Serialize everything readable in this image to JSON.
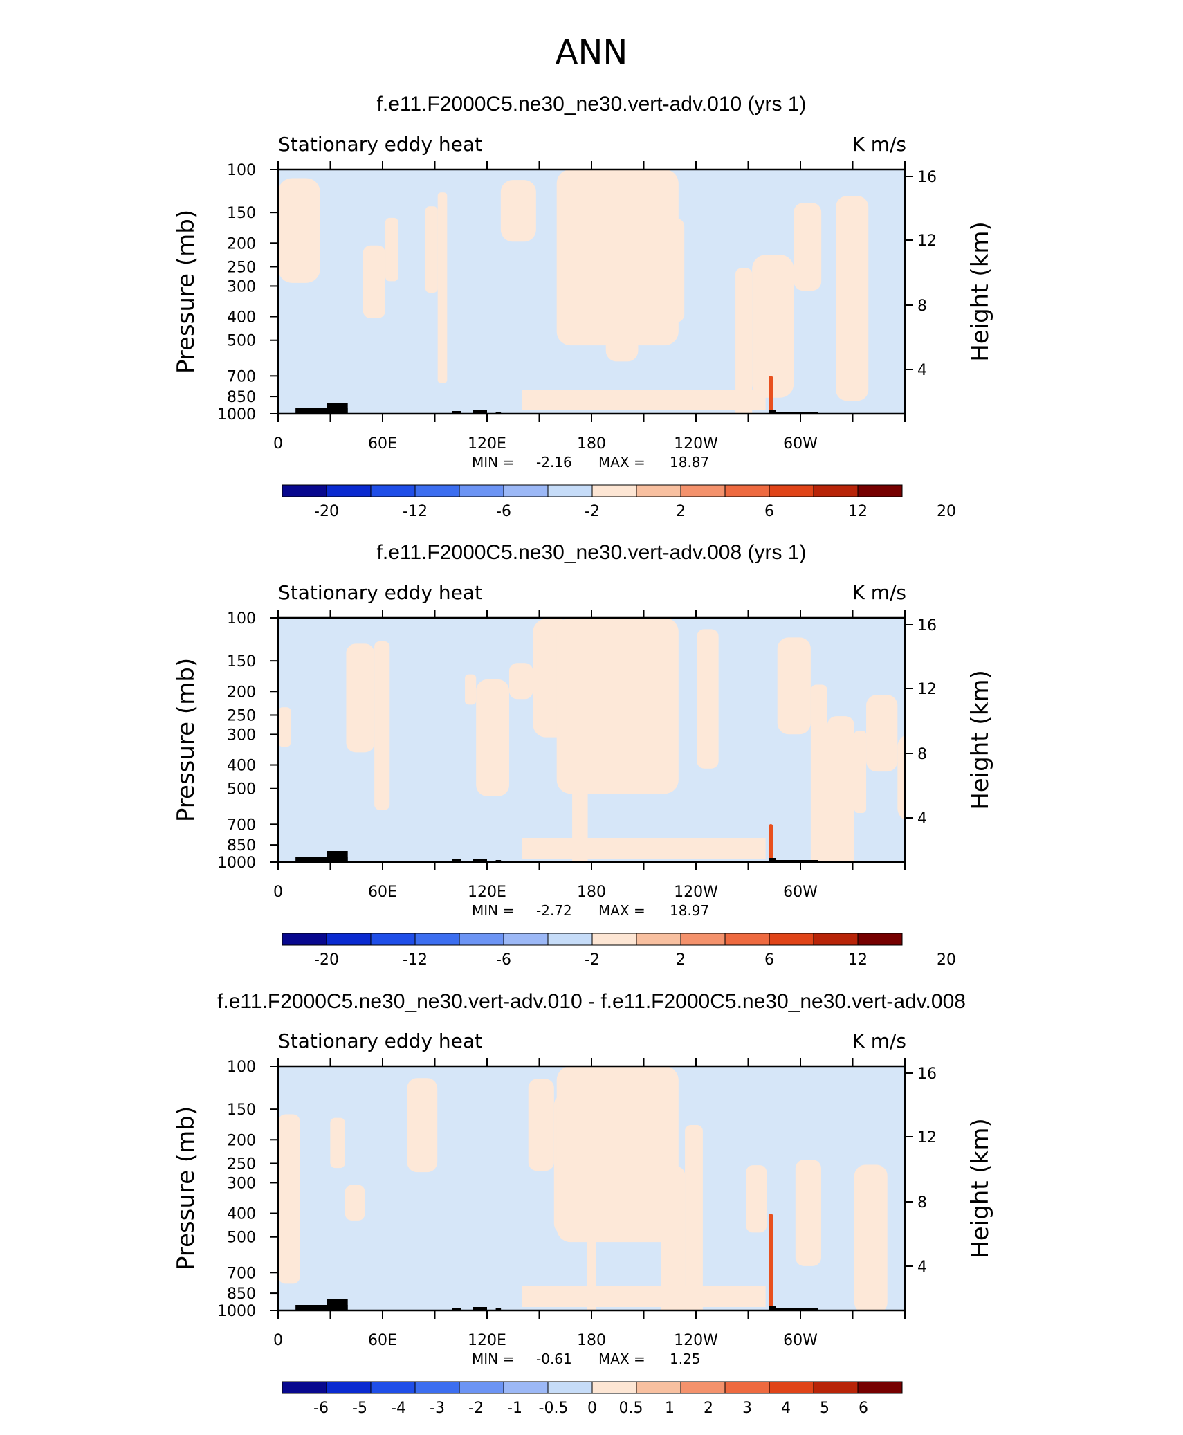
{
  "figure": {
    "title": "ANN"
  },
  "chart_data": [
    {
      "type": "heatmap",
      "title": "f.e11.F2000C5.ne30_ne30.vert-adv.010 (yrs 1)",
      "subtitle_left": "Stationary eddy heat",
      "units": "K m/s",
      "ylabel": "Pressure (mb)",
      "ylabel_right": "Height (km)",
      "x_ticks": [
        "0",
        "60E",
        "120E",
        "180",
        "120W",
        "60W"
      ],
      "y_ticks": [
        "100",
        "150",
        "200",
        "250",
        "300",
        "400",
        "500",
        "700",
        "850",
        "1000"
      ],
      "y_ticks_right": [
        "16",
        "12",
        "8",
        "4"
      ],
      "ylim": [
        1000,
        100
      ],
      "stats": {
        "min_label": "MIN =",
        "min": "-2.16",
        "max_label": "MAX =",
        "max": "18.87"
      },
      "colorbar_labels": [
        "-20",
        "-12",
        "-6",
        "-2",
        "2",
        "6",
        "12",
        "20"
      ]
    },
    {
      "type": "heatmap",
      "title": "f.e11.F2000C5.ne30_ne30.vert-adv.008 (yrs 1)",
      "subtitle_left": "Stationary eddy heat",
      "units": "K m/s",
      "ylabel": "Pressure (mb)",
      "ylabel_right": "Height (km)",
      "x_ticks": [
        "0",
        "60E",
        "120E",
        "180",
        "120W",
        "60W"
      ],
      "y_ticks": [
        "100",
        "150",
        "200",
        "250",
        "300",
        "400",
        "500",
        "700",
        "850",
        "1000"
      ],
      "y_ticks_right": [
        "16",
        "12",
        "8",
        "4"
      ],
      "ylim": [
        1000,
        100
      ],
      "stats": {
        "min_label": "MIN =",
        "min": "-2.72",
        "max_label": "MAX =",
        "max": "18.97"
      },
      "colorbar_labels": [
        "-20",
        "-12",
        "-6",
        "-2",
        "2",
        "6",
        "12",
        "20"
      ]
    },
    {
      "type": "heatmap",
      "title": "f.e11.F2000C5.ne30_ne30.vert-adv.010 - f.e11.F2000C5.ne30_ne30.vert-adv.008",
      "subtitle_left": "Stationary eddy heat",
      "units": "K m/s",
      "ylabel": "Pressure (mb)",
      "ylabel_right": "Height (km)",
      "x_ticks": [
        "0",
        "60E",
        "120E",
        "180",
        "120W",
        "60W"
      ],
      "y_ticks": [
        "100",
        "150",
        "200",
        "250",
        "300",
        "400",
        "500",
        "700",
        "850",
        "1000"
      ],
      "y_ticks_right": [
        "16",
        "12",
        "8",
        "4"
      ],
      "ylim": [
        1000,
        100
      ],
      "stats": {
        "min_label": "MIN =",
        "min": "-0.61",
        "max_label": "MAX =",
        "max": "1.25"
      },
      "colorbar_labels": [
        "-6",
        "-5",
        "-4",
        "-3",
        "-2",
        "-1",
        "-0.5",
        "0",
        "0.5",
        "1",
        "2",
        "3",
        "4",
        "5",
        "6"
      ]
    }
  ],
  "colors": {
    "colorbar": [
      "#08088e",
      "#0a2ad0",
      "#1f4ee8",
      "#3c6ef0",
      "#6c94f4",
      "#9cb8f6",
      "#c6dcf8",
      "#fde6d4",
      "#f8c0a0",
      "#f4926c",
      "#ee6a40",
      "#e04418",
      "#b82408",
      "#760000"
    ],
    "field_neg": "#d6e6f8",
    "field_pos": "#fde8d8",
    "terrain": "#000000",
    "spike": "#e8501e"
  }
}
